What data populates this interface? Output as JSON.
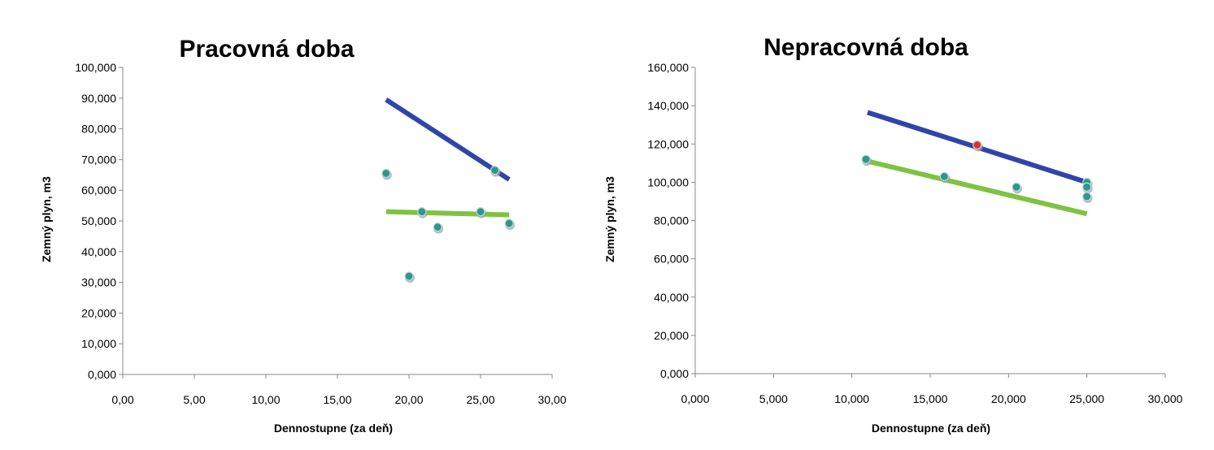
{
  "colors": {
    "trend_high": "#2f45a8",
    "trend_low": "#7ec242",
    "point_fill": "#2a9a8a",
    "point_highlight": "#e03030",
    "axis": "#888888"
  },
  "chart_data": [
    {
      "type": "scatter",
      "title": "Pracovná doba",
      "xlabel": "Dennostupne (za deň)",
      "ylabel": "Zemný plyn, m3",
      "xlim": [
        0,
        30
      ],
      "ylim": [
        0,
        100000
      ],
      "x_ticks": [
        "0,00",
        "5,00",
        "10,00",
        "15,00",
        "20,00",
        "25,00",
        "30,00"
      ],
      "y_ticks": [
        "0,000",
        "10,000",
        "20,000",
        "30,000",
        "40,000",
        "50,000",
        "60,000",
        "70,000",
        "80,000",
        "90,000",
        "100,000"
      ],
      "grid": false,
      "legend": "none",
      "points": [
        {
          "x": 18.4,
          "y": 65500
        },
        {
          "x": 20.0,
          "y": 32000
        },
        {
          "x": 20.9,
          "y": 53000
        },
        {
          "x": 22.0,
          "y": 48000
        },
        {
          "x": 25.0,
          "y": 53000
        },
        {
          "x": 26.0,
          "y": 66500
        },
        {
          "x": 27.0,
          "y": 49200
        }
      ],
      "trend_lines": [
        {
          "color_key": "trend_high",
          "x": [
            18.4,
            27.0
          ],
          "y": [
            89500,
            63500
          ]
        },
        {
          "color_key": "trend_low",
          "x": [
            18.4,
            27.0
          ],
          "y": [
            53000,
            52000
          ]
        }
      ]
    },
    {
      "type": "scatter",
      "title": "Nepracovná doba",
      "xlabel": "Dennostupne (za deň)",
      "ylabel": "Zemný plyn, m3",
      "xlim": [
        0,
        30
      ],
      "ylim": [
        0,
        160000
      ],
      "x_ticks": [
        "0,000",
        "5,000",
        "10,000",
        "15,000",
        "20,000",
        "25,000",
        "30,000"
      ],
      "y_ticks": [
        "0,000",
        "20,000",
        "40,000",
        "60,000",
        "80,000",
        "100,000",
        "120,000",
        "140,000",
        "160,000"
      ],
      "grid": false,
      "legend": "none",
      "points": [
        {
          "x": 10.9,
          "y": 112000
        },
        {
          "x": 15.9,
          "y": 103000
        },
        {
          "x": 18.0,
          "y": 119500,
          "highlight": true
        },
        {
          "x": 20.5,
          "y": 97500
        },
        {
          "x": 25.0,
          "y": 100000
        },
        {
          "x": 25.0,
          "y": 97500
        },
        {
          "x": 25.0,
          "y": 92500
        }
      ],
      "trend_lines": [
        {
          "color_key": "trend_high",
          "x": [
            11.0,
            25.0
          ],
          "y": [
            136500,
            100000
          ]
        },
        {
          "color_key": "trend_low",
          "x": [
            11.0,
            25.0
          ],
          "y": [
            111000,
            83500
          ]
        }
      ]
    }
  ]
}
